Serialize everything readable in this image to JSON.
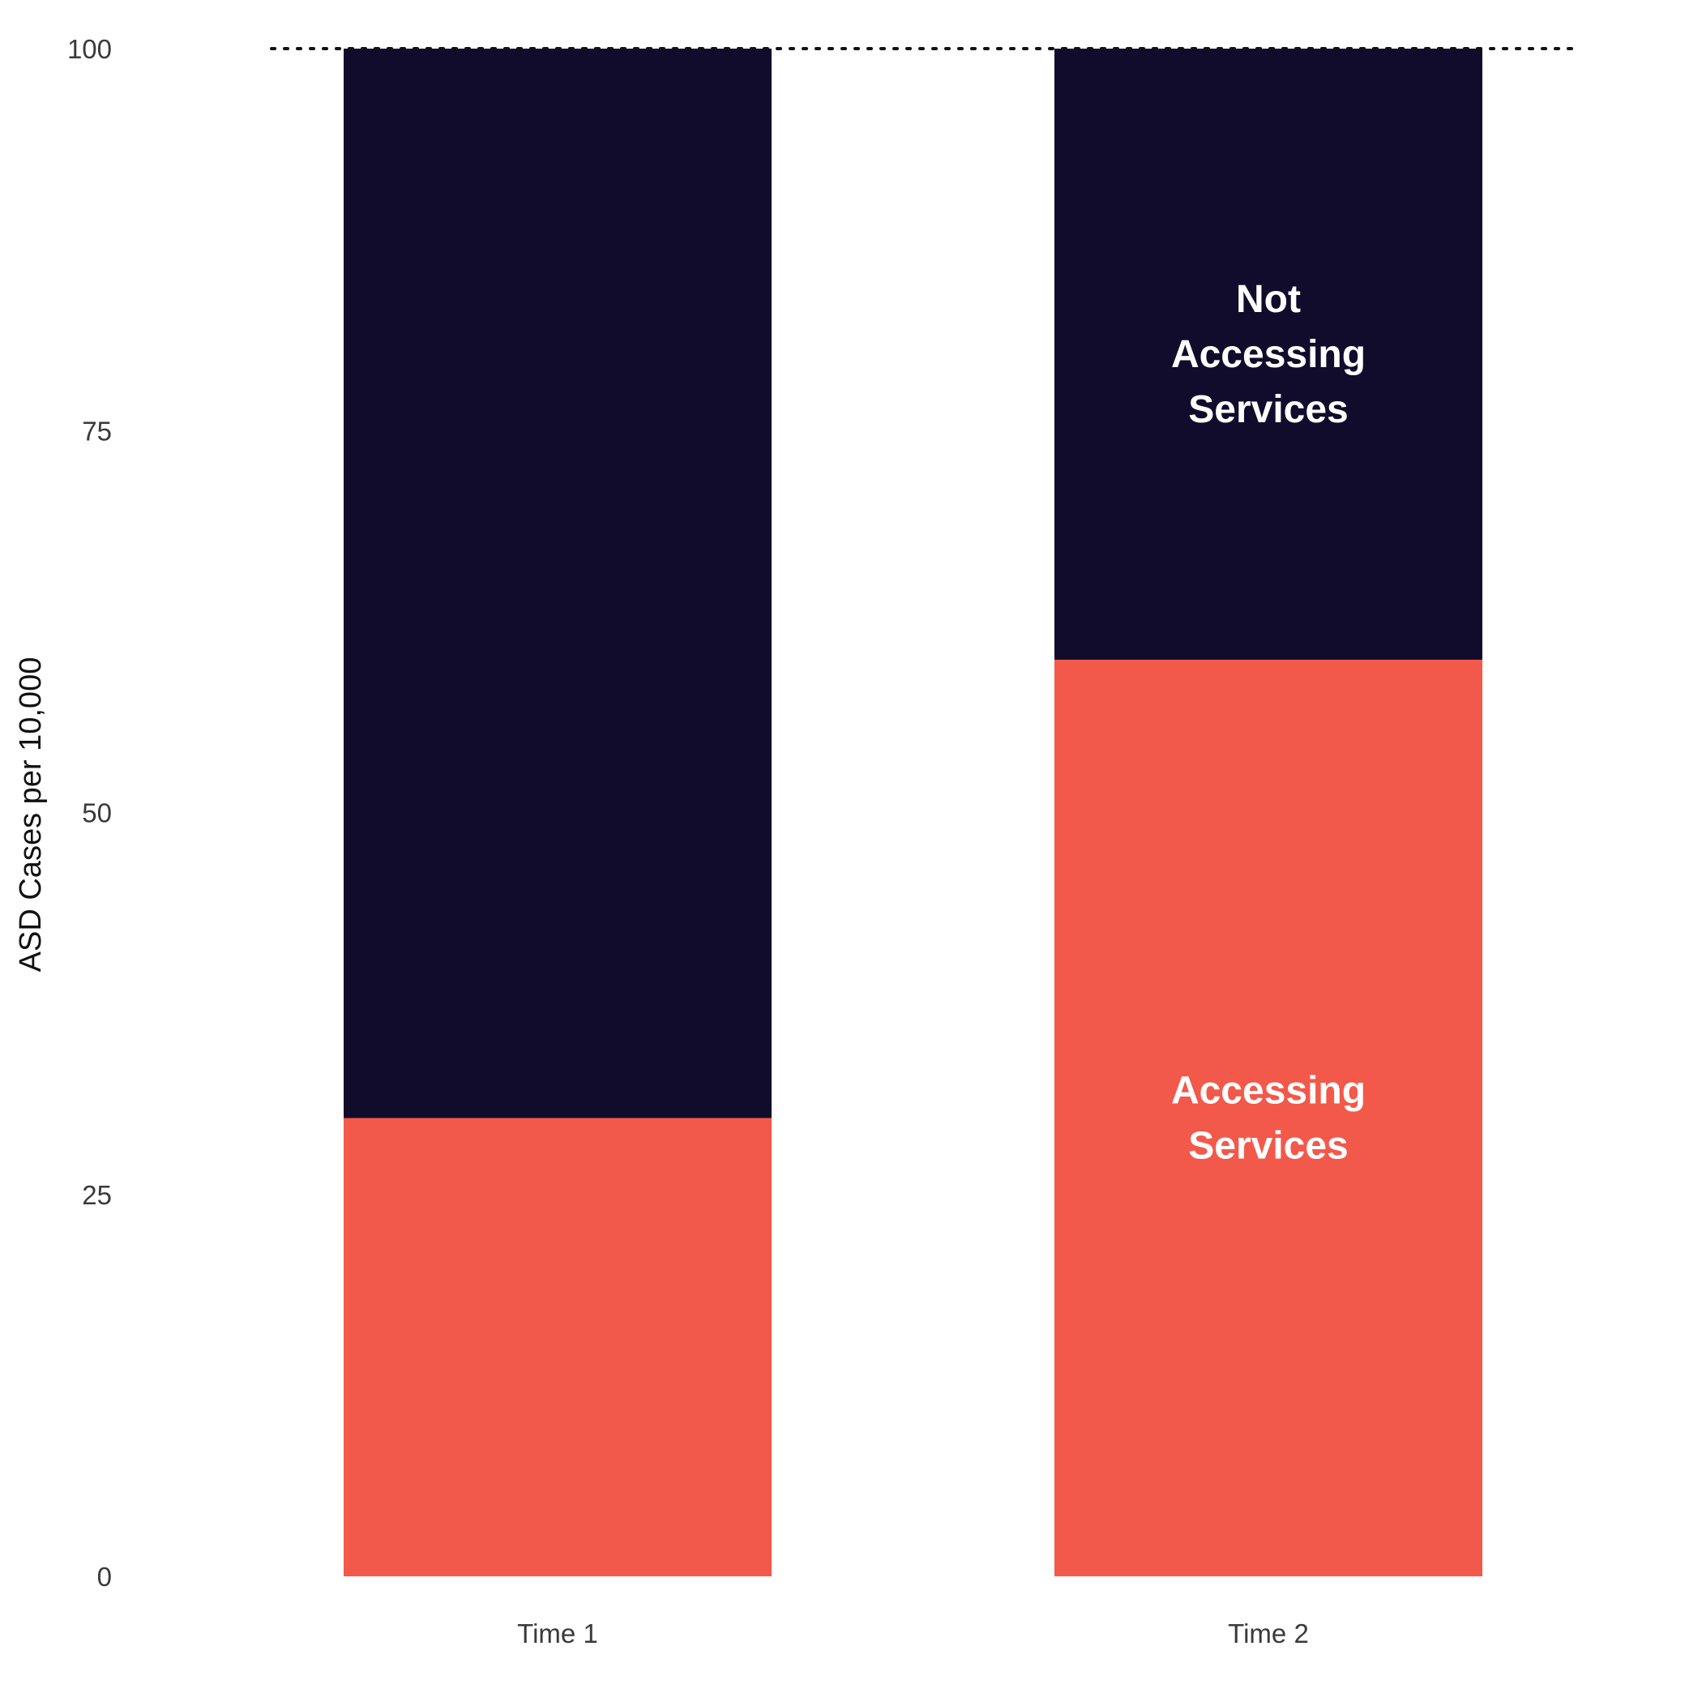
{
  "chart_data": {
    "type": "bar",
    "stacked": true,
    "categories": [
      "Time 1",
      "Time 2"
    ],
    "series": [
      {
        "name": "Accessing Services",
        "values": [
          30,
          60
        ],
        "color": "#F2594B"
      },
      {
        "name": "Not Accessing Services",
        "values": [
          70,
          40
        ],
        "color": "#110C2C"
      }
    ],
    "segment_labels": [
      {
        "category": "Time 2",
        "series": "Not Accessing Services",
        "lines": [
          "Not",
          "Accessing",
          "Services"
        ]
      },
      {
        "category": "Time 2",
        "series": "Accessing Services",
        "lines": [
          "Accessing",
          "Services"
        ]
      }
    ],
    "reference_line": {
      "value": 100,
      "style": "dotted"
    },
    "title": "",
    "xlabel": "",
    "ylabel": "ASD Cases per 10,000",
    "ylim": [
      0,
      100
    ],
    "yticks": [
      0,
      25,
      50,
      75,
      100
    ],
    "grid": false,
    "legend": "none"
  }
}
